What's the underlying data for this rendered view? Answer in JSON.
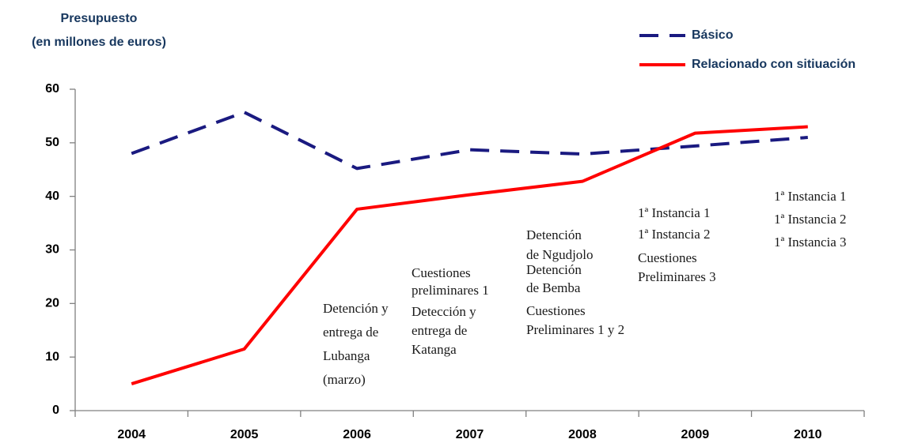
{
  "chart_data": {
    "type": "line",
    "y_label": [
      "Presupuesto",
      "(en millones de euros)"
    ],
    "categories": [
      "2004",
      "2005",
      "2006",
      "2007",
      "2008",
      "2009",
      "2010"
    ],
    "series": [
      {
        "name": "Básico",
        "color": "#1a1a80",
        "dashed": true,
        "values": [
          48,
          55.7,
          45.2,
          48.7,
          47.9,
          49.4,
          51
        ]
      },
      {
        "name": "Relacionado con sitiuación",
        "color": "#ff0000",
        "dashed": false,
        "values": [
          5,
          11.5,
          37.6,
          40.3,
          42.8,
          51.8,
          53
        ]
      }
    ],
    "ylim": [
      0,
      60
    ],
    "yticks": [
      0,
      10,
      20,
      30,
      40,
      50,
      60
    ],
    "annotations": [
      {
        "lines": [
          "Detención y",
          "entrega de",
          "Lubanga",
          "(marzo)"
        ]
      },
      {
        "lines": [
          "Cuestiones",
          "preliminares 1"
        ]
      },
      {
        "lines": [
          "Detección y",
          "entrega de",
          "Katanga"
        ]
      },
      {
        "lines": [
          "Detención",
          "de Ngudjolo"
        ]
      },
      {
        "lines": [
          "Detención",
          "de Bemba"
        ]
      },
      {
        "lines": [
          "Cuestiones",
          "Preliminares 1 y 2"
        ]
      },
      {
        "lines": [
          "1ª Instancia 1"
        ]
      },
      {
        "lines": [
          "1ª Instancia 2"
        ]
      },
      {
        "lines": [
          "Cuestiones",
          "Preliminares 3"
        ]
      },
      {
        "lines": [
          "1ª Instancia 1"
        ]
      },
      {
        "lines": [
          "1ª Instancia 2"
        ]
      },
      {
        "lines": [
          "1ª Instancia 3"
        ]
      }
    ]
  }
}
